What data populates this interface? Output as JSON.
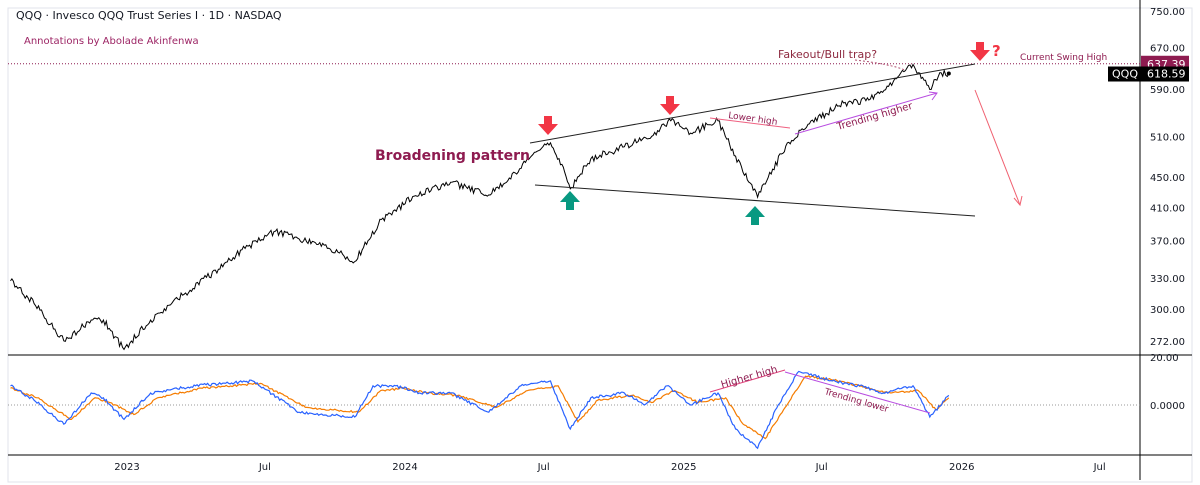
{
  "header": {
    "title": "QQQ · Invesco QQQ Trust Series I · 1D · NASDAQ",
    "annotation_credit": "Annotations by Abolade Akinfenwa"
  },
  "colors": {
    "price": "#000000",
    "osc_fast": "#2962ff",
    "osc_slow": "#f57c00",
    "bear": "#f23645",
    "bull": "#089981",
    "maroon": "#8e1b50",
    "purple": "#b84ce0"
  },
  "chart_data": [
    {
      "type": "line",
      "scale": "log",
      "ylim": [
        255,
        770
      ],
      "y_ticks": [
        "750.00",
        "670.00",
        "590.00",
        "510.00",
        "450.00",
        "410.00",
        "370.00",
        "330.00",
        "300.00",
        "272.00"
      ],
      "x_ticks": [
        "2023",
        "Jul",
        "2024",
        "Jul",
        "2025",
        "Jul",
        "2026",
        "Jul"
      ],
      "series": [
        {
          "name": "QQQ",
          "points": [
            [
              "2022-08-01",
              327
            ],
            [
              "2022-09-01",
              305
            ],
            [
              "2022-10-10",
              272
            ],
            [
              "2022-11-15",
              290
            ],
            [
              "2022-12-01",
              290
            ],
            [
              "2022-12-28",
              265
            ],
            [
              "2023-02-01",
              290
            ],
            [
              "2023-03-15",
              313
            ],
            [
              "2023-05-01",
              339
            ],
            [
              "2023-06-01",
              360
            ],
            [
              "2023-07-15",
              381
            ],
            [
              "2023-08-15",
              372
            ],
            [
              "2023-09-15",
              367
            ],
            [
              "2023-10-27",
              347
            ],
            [
              "2023-12-01",
              395
            ],
            [
              "2024-01-15",
              425
            ],
            [
              "2024-03-01",
              443
            ],
            [
              "2024-04-20",
              426
            ],
            [
              "2024-05-15",
              445
            ],
            [
              "2024-06-15",
              480
            ],
            [
              "2024-07-10",
              500
            ],
            [
              "2024-07-25",
              468
            ],
            [
              "2024-08-05",
              434
            ],
            [
              "2024-09-01",
              476
            ],
            [
              "2024-10-15",
              494
            ],
            [
              "2024-11-20",
              510
            ],
            [
              "2024-12-15",
              535
            ],
            [
              "2025-01-10",
              515
            ],
            [
              "2025-02-15",
              535
            ],
            [
              "2025-03-10",
              480
            ],
            [
              "2025-04-08",
              423
            ],
            [
              "2025-04-20",
              445
            ],
            [
              "2025-05-15",
              495
            ],
            [
              "2025-06-15",
              530
            ],
            [
              "2025-07-30",
              565
            ],
            [
              "2025-09-01",
              570
            ],
            [
              "2025-09-25",
              595
            ],
            [
              "2025-10-29",
              636
            ],
            [
              "2025-11-05",
              620
            ],
            [
              "2025-11-20",
              589
            ],
            [
              "2025-12-05",
              620
            ],
            [
              "2025-12-15",
              618.59
            ]
          ]
        }
      ],
      "labels": {
        "last_symbol": "QQQ",
        "last_price": "618.59",
        "swing_high": "637.39"
      },
      "annotations": {
        "pattern": "Broadening pattern",
        "fakeout": "Fakeout/Bull trap?",
        "swing_high": "Current Swing High",
        "lower_high": "Lower high",
        "trending_higher": "Trending higher",
        "question": "?"
      }
    },
    {
      "type": "line",
      "ylim": [
        -21,
        21
      ],
      "y_ticks": [
        "20.00",
        "0.0000"
      ],
      "series": [
        {
          "color": "blue",
          "points": [
            [
              "2022-08-01",
              8
            ],
            [
              "2022-09-01",
              2
            ],
            [
              "2022-10-10",
              -8
            ],
            [
              "2022-11-15",
              5
            ],
            [
              "2022-12-01",
              3
            ],
            [
              "2022-12-28",
              -6
            ],
            [
              "2023-02-01",
              5
            ],
            [
              "2023-04-01",
              8
            ],
            [
              "2023-06-15",
              10
            ],
            [
              "2023-08-15",
              -3
            ],
            [
              "2023-10-27",
              -5
            ],
            [
              "2023-11-20",
              8
            ],
            [
              "2023-12-20",
              8
            ],
            [
              "2024-01-20",
              5
            ],
            [
              "2024-03-01",
              5
            ],
            [
              "2024-04-20",
              -3
            ],
            [
              "2024-06-01",
              8
            ],
            [
              "2024-07-10",
              10
            ],
            [
              "2024-08-05",
              -10
            ],
            [
              "2024-09-01",
              3
            ],
            [
              "2024-10-15",
              5
            ],
            [
              "2024-11-10",
              0
            ],
            [
              "2024-12-10",
              8
            ],
            [
              "2025-01-10",
              0
            ],
            [
              "2025-02-15",
              5
            ],
            [
              "2025-03-10",
              -10
            ],
            [
              "2025-04-08",
              -18
            ],
            [
              "2025-05-05",
              0
            ],
            [
              "2025-06-01",
              14
            ],
            [
              "2025-07-15",
              10
            ],
            [
              "2025-08-20",
              8
            ],
            [
              "2025-09-20",
              5
            ],
            [
              "2025-10-29",
              8
            ],
            [
              "2025-11-20",
              -5
            ],
            [
              "2025-12-15",
              4
            ]
          ]
        },
        {
          "color": "orange",
          "points": [
            [
              "2022-08-01",
              7
            ],
            [
              "2022-09-05",
              3
            ],
            [
              "2022-10-20",
              -6
            ],
            [
              "2022-11-20",
              3
            ],
            [
              "2022-12-10",
              1
            ],
            [
              "2023-01-10",
              -4
            ],
            [
              "2023-02-10",
              3
            ],
            [
              "2023-04-10",
              7
            ],
            [
              "2023-06-25",
              9
            ],
            [
              "2023-08-25",
              -1
            ],
            [
              "2023-11-01",
              -3
            ],
            [
              "2023-11-30",
              6
            ],
            [
              "2023-12-30",
              7
            ],
            [
              "2024-01-30",
              5
            ],
            [
              "2024-03-10",
              4
            ],
            [
              "2024-04-30",
              -1
            ],
            [
              "2024-06-10",
              6
            ],
            [
              "2024-07-20",
              8
            ],
            [
              "2024-08-15",
              -7
            ],
            [
              "2024-09-10",
              2
            ],
            [
              "2024-10-25",
              4
            ],
            [
              "2024-11-20",
              1
            ],
            [
              "2024-12-20",
              6
            ],
            [
              "2025-01-20",
              1
            ],
            [
              "2025-02-25",
              3
            ],
            [
              "2025-03-20",
              -8
            ],
            [
              "2025-04-18",
              -14
            ],
            [
              "2025-05-12",
              -2
            ],
            [
              "2025-06-10",
              12
            ],
            [
              "2025-07-25",
              10
            ],
            [
              "2025-08-30",
              7
            ],
            [
              "2025-09-30",
              5
            ],
            [
              "2025-11-05",
              6
            ],
            [
              "2025-11-28",
              -2
            ],
            [
              "2025-12-15",
              3
            ]
          ]
        }
      ],
      "annotations": {
        "higher_high": "Higher high",
        "trending_lower": "Trending lower"
      }
    }
  ]
}
